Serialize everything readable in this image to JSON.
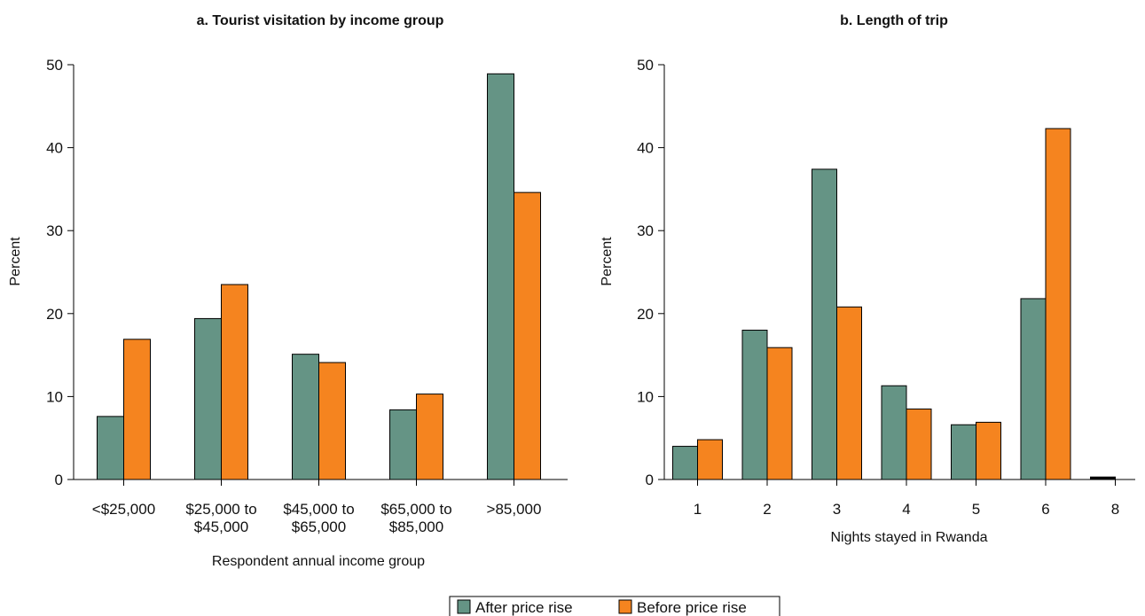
{
  "colors": {
    "after": "#659485",
    "before": "#f5841f",
    "axis": "#000000"
  },
  "legend": {
    "placement": "bottom-center",
    "items": [
      {
        "label": "After price rise",
        "color": "#659485"
      },
      {
        "label": "Before price rise",
        "color": "#f5841f"
      }
    ]
  },
  "chart_data": [
    {
      "type": "bar",
      "title": "a. Tourist visitation by income group",
      "xlabel": "Respondent annual income group",
      "ylabel": "Percent",
      "ylim": [
        0,
        50
      ],
      "yticks": [
        0,
        10,
        20,
        30,
        40,
        50
      ],
      "categories": [
        "<$25,000",
        "$25,000 to $45,000",
        "$45,000 to $65,000",
        "$65,000 to $85,000",
        ">85,000"
      ],
      "category_lines": [
        [
          "<$25,000"
        ],
        [
          "$25,000 to",
          "$45,000"
        ],
        [
          "$45,000 to",
          "$65,000"
        ],
        [
          "$65,000 to",
          "$85,000"
        ],
        [
          ">85,000"
        ]
      ],
      "series": [
        {
          "name": "After price rise",
          "values": [
            7.6,
            19.4,
            15.1,
            8.4,
            48.9
          ]
        },
        {
          "name": "Before price rise",
          "values": [
            16.9,
            23.5,
            14.1,
            10.3,
            34.6
          ]
        }
      ]
    },
    {
      "type": "bar",
      "title": "b. Length of trip",
      "xlabel": "Nights stayed in Rwanda",
      "ylabel": "Percent",
      "ylim": [
        0,
        50
      ],
      "yticks": [
        0,
        10,
        20,
        30,
        40,
        50
      ],
      "categories": [
        "1",
        "2",
        "3",
        "4",
        "5",
        "6",
        "8"
      ],
      "category_lines": [
        [
          "1"
        ],
        [
          "2"
        ],
        [
          "3"
        ],
        [
          "4"
        ],
        [
          "5"
        ],
        [
          "6"
        ],
        [
          "8"
        ]
      ],
      "series": [
        {
          "name": "After price rise",
          "values": [
            4.0,
            18.0,
            37.4,
            11.3,
            6.6,
            21.8,
            0.3
          ]
        },
        {
          "name": "Before price rise",
          "values": [
            4.8,
            15.9,
            20.8,
            8.5,
            6.9,
            42.3,
            0
          ]
        }
      ]
    }
  ]
}
